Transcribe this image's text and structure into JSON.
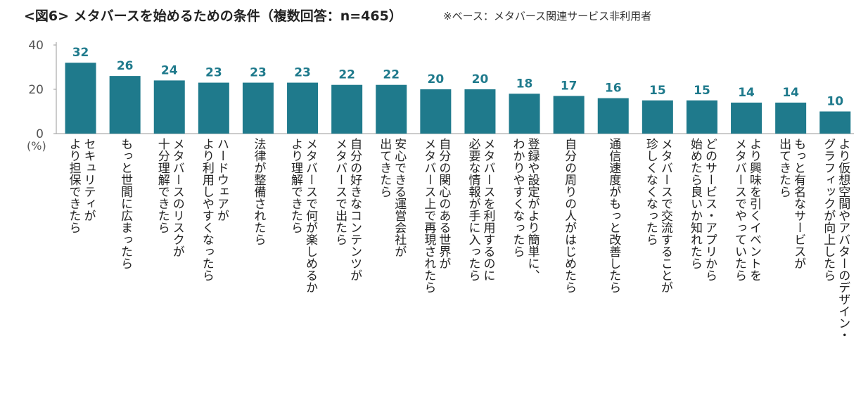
{
  "title": "<図6> メタバースを始めるための条件（複数回答：n=465）",
  "note": "※ベース：メタバース関連サービス非利用者",
  "colors": {
    "bar": "#1f7a8c",
    "label": "#1f7a8c",
    "axis": "#999999"
  },
  "chart_data": {
    "type": "bar",
    "title": "<図6> メタバースを始めるための条件（複数回答：n=465）",
    "ylabel": "(%)",
    "ylim": [
      0,
      40
    ],
    "yticks": [
      0,
      20,
      40
    ],
    "categories": [
      "セキュリティが\nより担保できたら",
      "もっと世間に広まったら",
      "メタバースのリスクが\n十分理解できたら",
      "ハードウェアが\nより利用しやすくなったら",
      "法律が整備されたら",
      "メタバースで何が楽しめるか\nより理解できたら",
      "自分の好きなコンテンツが\nメタバースで出たら",
      "安心できる運営会社が\n出てきたら",
      "自分の関心のある世界が\nメタバース上で再現されたら",
      "メタバースを利用するのに\n必要な情報が手に入ったら",
      "登録や設定がより簡単に、\nわかりやすくなったら",
      "自分の周りの人がはじめたら",
      "通信速度がもっと改善したら",
      "メタバースで交流することが\n珍しくなくなったら",
      "どのサービス・アプリから\n始めたら良いか知れたら",
      "より興味を引くイベントを\nメタバースでやっていたら",
      "もっと有名なサービスが\n出てきたら",
      "より仮想空間やアバターのデザイン・\nグラフィックが向上したら"
    ],
    "values": [
      32,
      26,
      24,
      23,
      23,
      23,
      22,
      22,
      20,
      20,
      18,
      17,
      16,
      15,
      15,
      14,
      14,
      10
    ]
  }
}
